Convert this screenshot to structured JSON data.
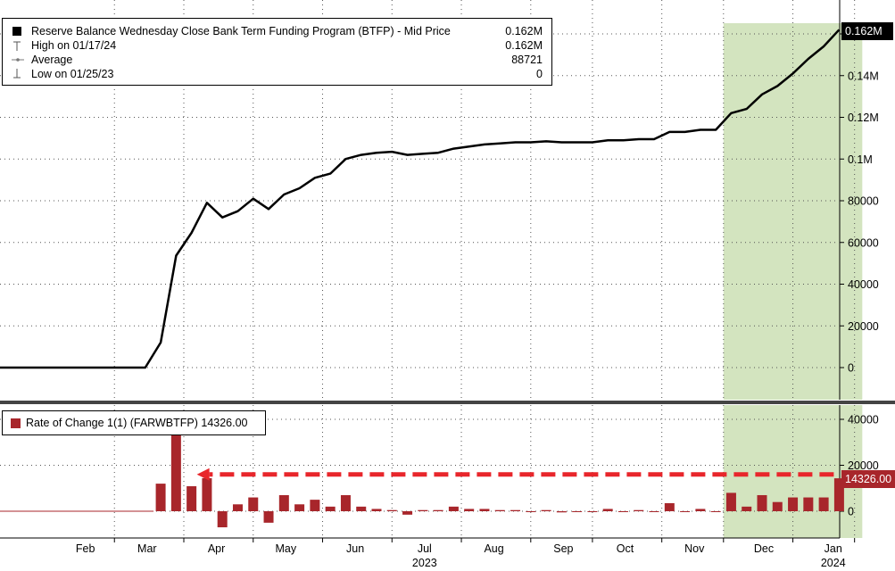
{
  "legend_top": {
    "series_label": "Reserve Balance Wednesday Close Bank Term Funding Program (BTFP) - Mid Price",
    "series_value": "0.162M",
    "high_label": "High on 01/17/24",
    "high_value": "0.162M",
    "avg_label": "Average",
    "avg_value": "88721",
    "low_label": "Low on 01/25/23",
    "low_value": "0"
  },
  "legend_bottom": {
    "series_label": "Rate of Change 1(1) (FARWBTFP) 14326.00"
  },
  "tags": {
    "top_last": "0.162M",
    "bottom_last": "14326.00"
  },
  "colors": {
    "line": "#000000",
    "bars": "#a8262b",
    "highlight": "#d3e4bf",
    "arrow": "#e8262b",
    "tag_top_bg": "#000000",
    "tag_bottom_bg": "#a8262b"
  },
  "chart_data": [
    {
      "type": "line",
      "x_unit": "weeks since 2023-01-04",
      "x": [
        0,
        1,
        2,
        3,
        4,
        5,
        6,
        7,
        8,
        9,
        10,
        11,
        12,
        13,
        14,
        15,
        16,
        17,
        18,
        19,
        20,
        21,
        22,
        23,
        24,
        25,
        26,
        27,
        28,
        29,
        30,
        31,
        32,
        33,
        34,
        35,
        36,
        37,
        38,
        39,
        40,
        41,
        42,
        43,
        44,
        45,
        46,
        47,
        48,
        49,
        50,
        51,
        52,
        53,
        54,
        55
      ],
      "values": [
        0,
        0,
        0,
        0,
        0,
        0,
        0,
        0,
        0,
        0,
        0,
        12000,
        53700,
        64600,
        79000,
        72000,
        75000,
        81000,
        76000,
        83000,
        86000,
        91000,
        93000,
        100000,
        102000,
        103000,
        103500,
        102000,
        102500,
        103000,
        105000,
        106000,
        107000,
        107500,
        108000,
        108000,
        108500,
        108000,
        108000,
        108000,
        109000,
        109000,
        109500,
        109500,
        113000,
        113000,
        114000,
        114000,
        122000,
        124000,
        131000,
        135000,
        141000,
        148000,
        154000,
        162000
      ],
      "ylabel": "",
      "ylim": [
        -14000,
        168000
      ],
      "yticks": [
        0,
        20000,
        40000,
        60000,
        80000,
        "0.1M",
        "0.12M",
        "0.14M"
      ],
      "highlight_region": {
        "from": 47.5,
        "to": 56.5
      },
      "grid": true,
      "legend": "top-left"
    },
    {
      "type": "bar",
      "x_unit": "weeks since 2023-01-04",
      "x": [
        11,
        12,
        13,
        14,
        15,
        16,
        17,
        18,
        19,
        20,
        21,
        22,
        23,
        24,
        25,
        26,
        27,
        28,
        29,
        30,
        31,
        32,
        33,
        34,
        35,
        36,
        37,
        38,
        39,
        40,
        41,
        42,
        43,
        44,
        45,
        46,
        47,
        48,
        49,
        50,
        51,
        52,
        53,
        54,
        55
      ],
      "values": [
        12000,
        41700,
        10900,
        14400,
        -7000,
        3000,
        6000,
        -5000,
        7000,
        3000,
        5000,
        2000,
        7000,
        2000,
        1000,
        500,
        -1500,
        500,
        500,
        2000,
        1000,
        1000,
        500,
        500,
        0,
        500,
        -500,
        0,
        0,
        1000,
        0,
        500,
        0,
        3500,
        0,
        1000,
        0,
        8000,
        2000,
        7000,
        4000,
        6000,
        6000,
        6000,
        14326
      ],
      "ylim": [
        -12000,
        48000
      ],
      "yticks": [
        0,
        20000,
        40000
      ],
      "arrow_level": 16000,
      "arrow_from_week": 55,
      "arrow_to_week": 13,
      "legend": "top-left"
    }
  ],
  "x_axis": {
    "months": [
      {
        "label": "Feb",
        "week": 6
      },
      {
        "label": "Mar",
        "week": 10
      },
      {
        "label": "Apr",
        "week": 14.5
      },
      {
        "label": "May",
        "week": 19
      },
      {
        "label": "Jun",
        "week": 23.5
      },
      {
        "label": "Jul",
        "week": 28
      },
      {
        "label": "Aug",
        "week": 32.5
      },
      {
        "label": "Sep",
        "week": 37
      },
      {
        "label": "Oct",
        "week": 41
      },
      {
        "label": "Nov",
        "week": 45.5
      },
      {
        "label": "Dec",
        "week": 50
      },
      {
        "label": "Jan",
        "week": 54.5
      }
    ],
    "years": [
      {
        "label": "2023",
        "week": 28
      },
      {
        "label": "2024",
        "week": 54.5
      }
    ]
  }
}
